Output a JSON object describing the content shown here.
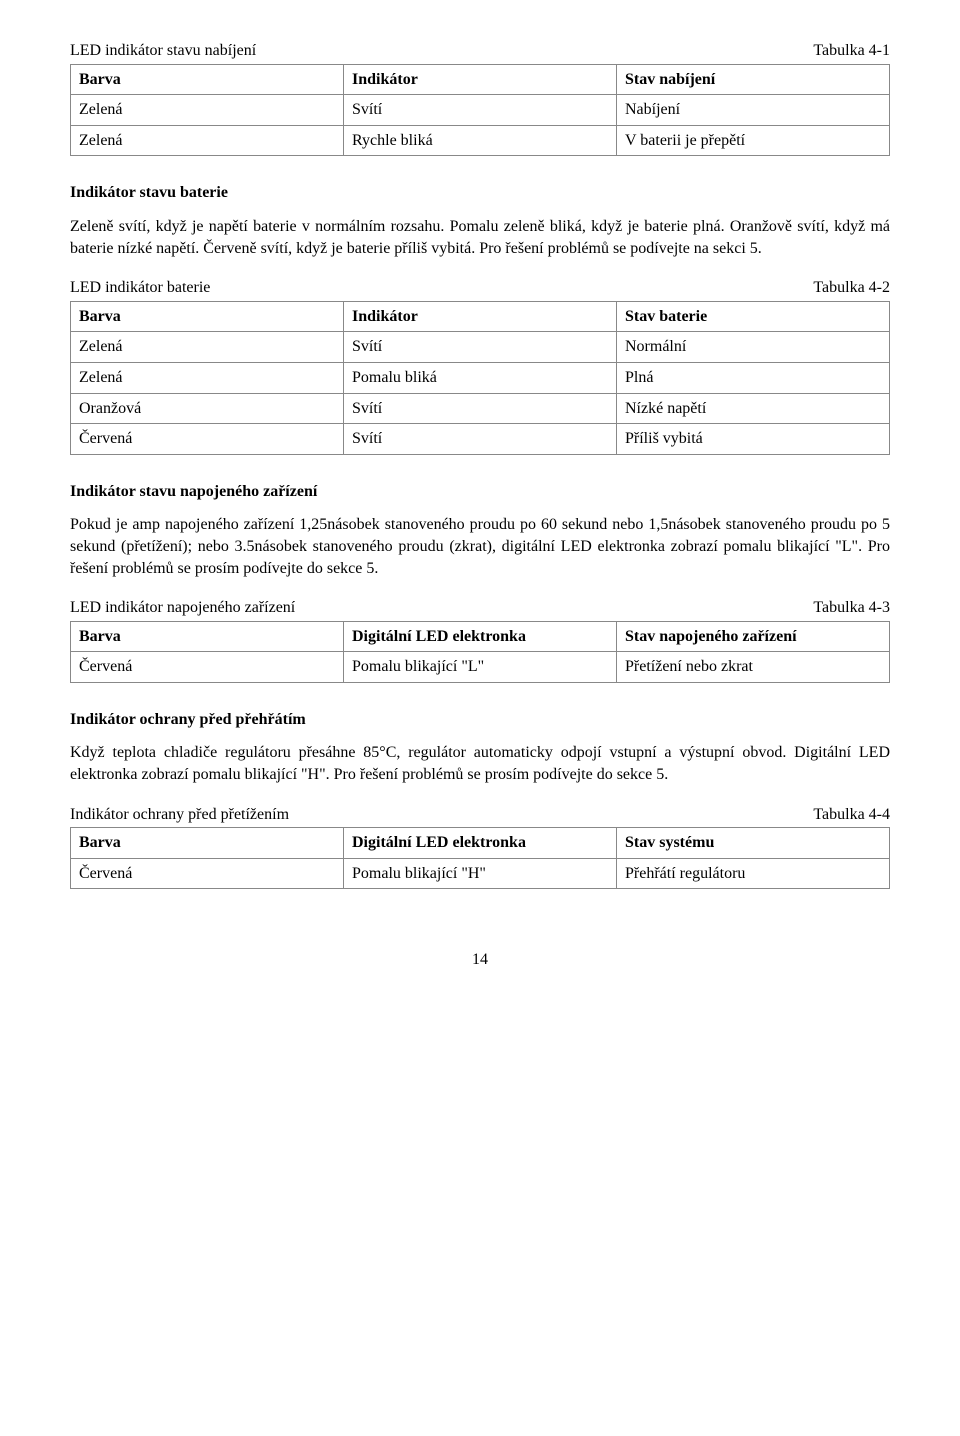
{
  "table41": {
    "caption": "LED indikátor stavu nabíjení",
    "label": "Tabulka 4-1",
    "headers": [
      "Barva",
      "Indikátor",
      "Stav nabíjení"
    ],
    "rows": [
      [
        "Zelená",
        "Svítí",
        "Nabíjení"
      ],
      [
        "Zelená",
        "Rychle bliká",
        "V baterii je přepětí"
      ]
    ]
  },
  "section_battery": {
    "heading": "Indikátor stavu baterie",
    "para": "Zeleně svítí, když je napětí baterie v normálním rozsahu. Pomalu zeleně bliká, když je baterie plná. Oranžově svítí, když má baterie nízké napětí. Červeně svítí, když je baterie příliš vybitá. Pro řešení problémů se podívejte na sekci 5."
  },
  "table42": {
    "caption": "LED indikátor baterie",
    "label": "Tabulka 4-2",
    "headers": [
      "Barva",
      "Indikátor",
      "Stav baterie"
    ],
    "rows": [
      [
        "Zelená",
        "Svítí",
        "Normální"
      ],
      [
        "Zelená",
        "Pomalu bliká",
        "Plná"
      ],
      [
        "Oranžová",
        "Svítí",
        "Nízké napětí"
      ],
      [
        "Červená",
        "Svítí",
        "Příliš vybitá"
      ]
    ]
  },
  "section_load": {
    "heading": "Indikátor stavu napojeného zařízení",
    "para": "Pokud je amp napojeného zařízení 1,25násobek stanoveného proudu po 60 sekund nebo 1,5násobek stanoveného proudu po 5 sekund (přetížení); nebo 3.5násobek stanoveného proudu (zkrat), digitální LED elektronka zobrazí pomalu blikající \"L\". Pro řešení problémů se prosím podívejte do sekce 5."
  },
  "table43": {
    "caption": "LED indikátor napojeného zařízení",
    "label": "Tabulka 4-3",
    "headers": [
      "Barva",
      "Digitální LED elektronka",
      "Stav napojeného zařízení"
    ],
    "rows": [
      [
        "Červená",
        "Pomalu blikající \"L\"",
        "Přetížení nebo zkrat"
      ]
    ]
  },
  "section_overheat": {
    "heading": "Indikátor ochrany před přehřátím",
    "para": "Když teplota chladiče regulátoru přesáhne 85°C, regulátor automaticky odpojí vstupní a výstupní obvod. Digitální LED elektronka zobrazí pomalu blikající \"H\". Pro řešení problémů se prosím podívejte do sekce 5."
  },
  "table44": {
    "caption": "Indikátor ochrany před přetížením",
    "label": "Tabulka 4-4",
    "headers": [
      "Barva",
      "Digitální LED elektronka",
      "Stav systému"
    ],
    "rows": [
      [
        "Červená",
        "Pomalu blikající \"H\"",
        "Přehřátí regulátoru"
      ]
    ]
  },
  "page_number": "14"
}
